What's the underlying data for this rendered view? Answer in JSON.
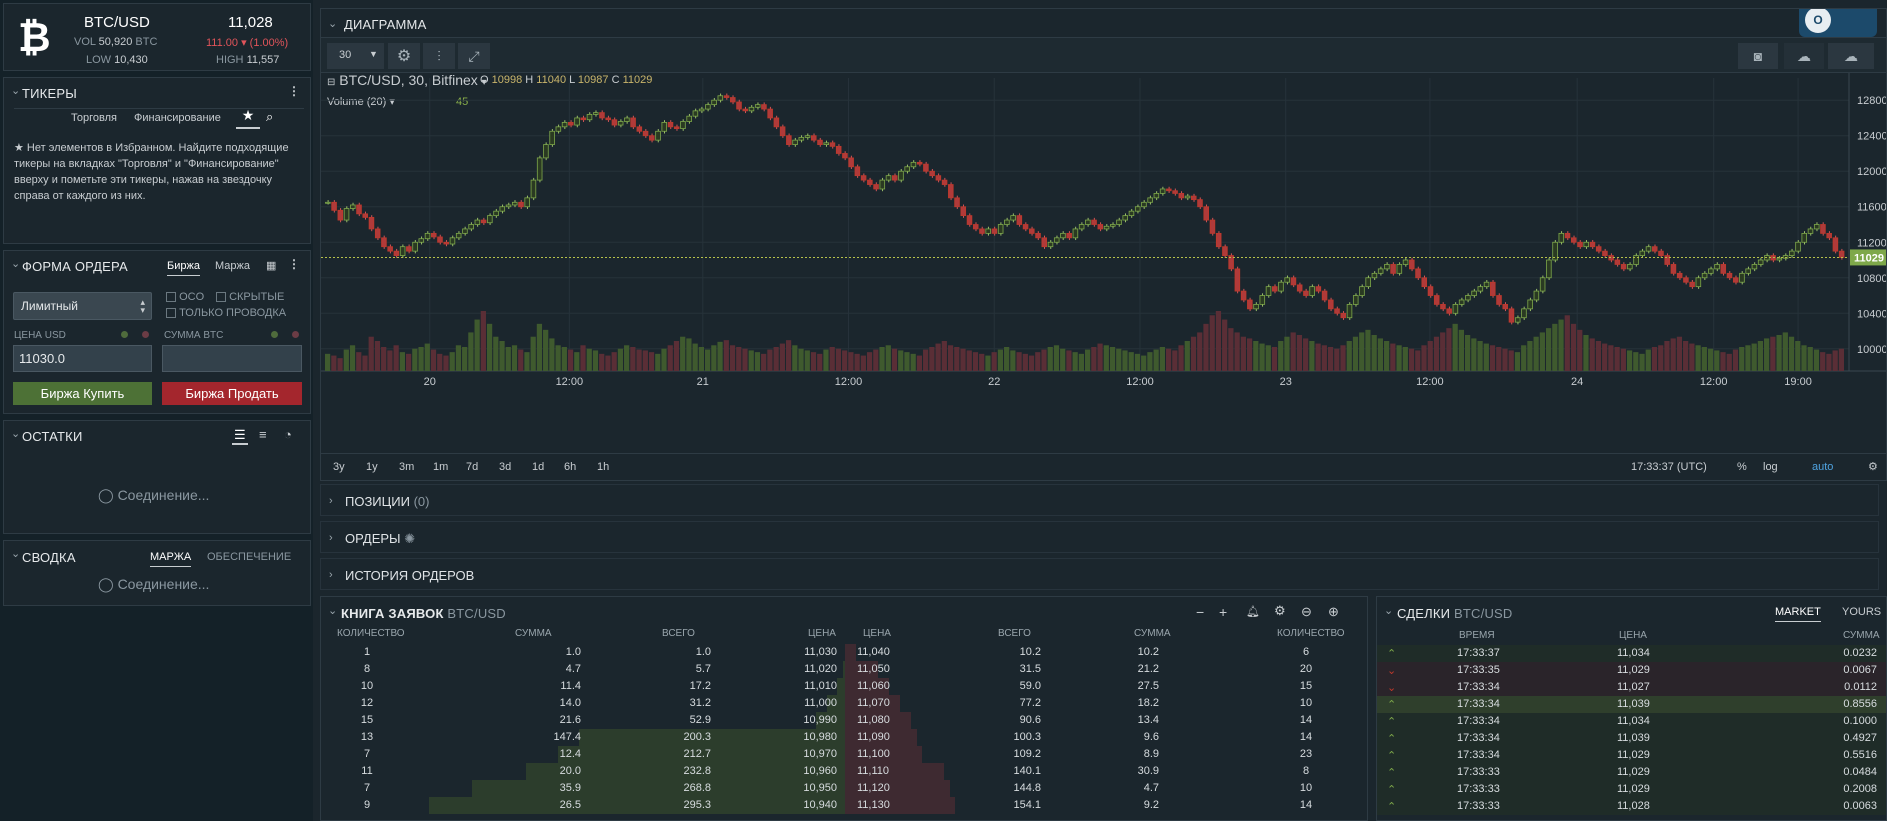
{
  "ticker": {
    "pair": "BTC/USD",
    "price": "11,028",
    "vol_label": "VOL",
    "vol": "50,920",
    "vol_unit": "BTC",
    "change": "111.00",
    "change_pct": "(1.00%)",
    "low_label": "LOW",
    "low": "10,430",
    "high_label": "HIGH",
    "high": "11,557"
  },
  "tickers": {
    "title": "ТИКЕРЫ",
    "tab_trading": "Торговля",
    "tab_funding": "Финансирование",
    "empty_msg": "Нет элементов в Избранном. Найдите подходящие тикеры на вкладках \"Торговля\" и \"Финансирование\" вверху и пометьте эти тикеры, нажав на звездочку справа от каждого из них."
  },
  "order_form": {
    "title": "ФОРМА ОРДЕРА",
    "tab_exchange": "Биржа",
    "tab_margin": "Маржа",
    "order_type": "Лимитный",
    "oco": "OCO",
    "hidden": "СКРЫТЫЕ",
    "post_only": "ТОЛЬКО ПРОВОДКА",
    "price_label": "ЦЕНА USD",
    "amount_label": "СУММА BTC",
    "price_value": "11030.0",
    "amount_value": "",
    "buy_label": "Биржа Купить",
    "sell_label": "Биржа Продать"
  },
  "balances": {
    "title": "ОСТАТКИ",
    "status": "Соединение..."
  },
  "summary": {
    "title": "СВОДКА",
    "tab_margin": "МАРЖА",
    "tab_collateral": "ОБЕСПЕЧЕНИЕ",
    "status": "Соединение..."
  },
  "chart": {
    "panel_title": "ДИАГРАММА",
    "interval": "30",
    "symbol": "BTC/USD, 30, Bitfinex",
    "o_label": "O",
    "o": "10998",
    "h_label": "H",
    "h": "11040",
    "l_label": "L",
    "l": "10987",
    "c_label": "C",
    "c": "11029",
    "volume_label": "Volume (20)",
    "volume_value": "45",
    "price_tag": "11029",
    "time": "17:33:37 (UTC)",
    "pct": "%",
    "log": "log",
    "auto": "auto",
    "ranges": [
      "3y",
      "1y",
      "3m",
      "1m",
      "7d",
      "3d",
      "1d",
      "6h",
      "1h"
    ]
  },
  "chart_data": {
    "type": "candlestick",
    "x_ticks": [
      "20",
      "12:00",
      "21",
      "12:00",
      "22",
      "12:00",
      "23",
      "12:00",
      "24",
      "12:00",
      "19:00"
    ],
    "y_ticks": [
      12800,
      12400,
      12000,
      11600,
      11200,
      10800,
      10400,
      10000
    ],
    "ylim": [
      9750,
      13050
    ],
    "last_price": 11029,
    "closes": [
      11650,
      11560,
      11450,
      11580,
      11620,
      11520,
      11480,
      11350,
      11250,
      11150,
      11100,
      11050,
      11150,
      11100,
      11200,
      11240,
      11300,
      11260,
      11200,
      11180,
      11250,
      11300,
      11350,
      11400,
      11450,
      11420,
      11500,
      11550,
      11600,
      11620,
      11650,
      11600,
      11700,
      11900,
      12150,
      12300,
      12450,
      12500,
      12550,
      12520,
      12600,
      12580,
      12640,
      12660,
      12600,
      12580,
      12520,
      12560,
      12600,
      12500,
      12450,
      12400,
      12350,
      12450,
      12550,
      12500,
      12480,
      12560,
      12620,
      12680,
      12700,
      12750,
      12800,
      12850,
      12830,
      12780,
      12700,
      12680,
      12720,
      12750,
      12700,
      12600,
      12500,
      12400,
      12300,
      12350,
      12380,
      12400,
      12350,
      12300,
      12320,
      12280,
      12200,
      12150,
      12050,
      11950,
      11900,
      11850,
      11800,
      11900,
      11950,
      11900,
      12000,
      12050,
      12100,
      12080,
      12000,
      11950,
      11900,
      11850,
      11700,
      11600,
      11500,
      11400,
      11350,
      11300,
      11350,
      11300,
      11400,
      11450,
      11500,
      11400,
      11350,
      11300,
      11250,
      11150,
      11200,
      11250,
      11300,
      11250,
      11350,
      11400,
      11450,
      11400,
      11350,
      11380,
      11400,
      11450,
      11500,
      11550,
      11600,
      11650,
      11700,
      11750,
      11800,
      11780,
      11750,
      11700,
      11720,
      11680,
      11600,
      11450,
      11300,
      11150,
      11050,
      10900,
      10650,
      10550,
      10450,
      10500,
      10600,
      10700,
      10650,
      10750,
      10800,
      10720,
      10650,
      10600,
      10700,
      10650,
      10550,
      10450,
      10400,
      10350,
      10500,
      10600,
      10700,
      10800,
      10850,
      10900,
      10950,
      10850,
      10950,
      11000,
      10900,
      10800,
      10700,
      10600,
      10500,
      10450,
      10400,
      10500,
      10550,
      10600,
      10650,
      10700,
      10750,
      10600,
      10500,
      10450,
      10300,
      10350,
      10450,
      10550,
      10650,
      10800,
      11000,
      11200,
      11300,
      11250,
      11200,
      11150,
      11200,
      11150,
      11100,
      11050,
      11000,
      10950,
      10900,
      10950,
      11050,
      11100,
      11150,
      11100,
      11050,
      10950,
      10850,
      10800,
      10750,
      10700,
      10800,
      10850,
      10900,
      10950,
      10850,
      10800,
      10750,
      10850,
      10900,
      10950,
      11000,
      11050,
      11000,
      11020,
      11050,
      11100,
      11200,
      11300,
      11350,
      11400,
      11300,
      11250,
      11100,
      11029
    ],
    "volumes": [
      20,
      18,
      15,
      25,
      30,
      22,
      18,
      40,
      35,
      28,
      24,
      30,
      22,
      20,
      26,
      28,
      32,
      25,
      20,
      18,
      22,
      30,
      28,
      45,
      60,
      70,
      55,
      40,
      35,
      28,
      30,
      25,
      22,
      40,
      55,
      48,
      38,
      30,
      28,
      25,
      22,
      30,
      26,
      24,
      20,
      18,
      22,
      26,
      30,
      28,
      25,
      24,
      22,
      20,
      26,
      30,
      35,
      40,
      38,
      32,
      28,
      25,
      30,
      34,
      36,
      30,
      28,
      26,
      24,
      22,
      20,
      25,
      28,
      32,
      36,
      30,
      26,
      24,
      22,
      20,
      25,
      28,
      26,
      24,
      22,
      20,
      18,
      22,
      25,
      28,
      30,
      26,
      24,
      22,
      20,
      18,
      25,
      28,
      32,
      35,
      30,
      28,
      26,
      24,
      22,
      20,
      18,
      22,
      25,
      28,
      24,
      22,
      20,
      18,
      22,
      25,
      28,
      30,
      26,
      24,
      22,
      20,
      25,
      28,
      32,
      30,
      28,
      26,
      24,
      22,
      20,
      18,
      22,
      25,
      28,
      26,
      24,
      30,
      35,
      40,
      45,
      55,
      65,
      70,
      60,
      50,
      45,
      40,
      38,
      35,
      32,
      30,
      28,
      35,
      40,
      45,
      42,
      38,
      35,
      32,
      30,
      28,
      26,
      30,
      35,
      40,
      45,
      48,
      42,
      38,
      35,
      32,
      30,
      28,
      26,
      24,
      30,
      35,
      40,
      45,
      50,
      55,
      48,
      42,
      38,
      35,
      32,
      30,
      28,
      26,
      24,
      22,
      30,
      35,
      40,
      45,
      50,
      55,
      60,
      65,
      55,
      48,
      42,
      38,
      35,
      32,
      30,
      28,
      26,
      24,
      22,
      20,
      25,
      28,
      30,
      35,
      38,
      40,
      35,
      32,
      30,
      28,
      26,
      24,
      22,
      20,
      25,
      28,
      30,
      32,
      35,
      38,
      40,
      42,
      45,
      40,
      35,
      30,
      28,
      25,
      22,
      20,
      24,
      26,
      30,
      34,
      38,
      35,
      30,
      26,
      22,
      20
    ]
  },
  "panels": {
    "positions": "ПОЗИЦИИ",
    "positions_count": "(0)",
    "orders": "ОРДЕРЫ",
    "history": "ИСТОРИЯ ОРДЕРОВ"
  },
  "orderbook": {
    "title": "КНИГА ЗАЯВОК",
    "pair": "BTC/USD",
    "headers": [
      "КОЛИЧЕСТВО",
      "СУММА",
      "ВСЕГО",
      "ЦЕНА",
      "ЦЕНА",
      "ВСЕГО",
      "СУММА",
      "КОЛИЧЕСТВО"
    ],
    "bids": [
      [
        "1",
        "1.0",
        "1.0",
        "11,030"
      ],
      [
        "8",
        "4.7",
        "5.7",
        "11,020"
      ],
      [
        "10",
        "11.4",
        "17.2",
        "11,010"
      ],
      [
        "12",
        "14.0",
        "31.2",
        "11,000"
      ],
      [
        "15",
        "21.6",
        "52.9",
        "10,990"
      ],
      [
        "13",
        "147.4",
        "200.3",
        "10,980"
      ],
      [
        "7",
        "12.4",
        "212.7",
        "10,970"
      ],
      [
        "11",
        "20.0",
        "232.8",
        "10,960"
      ],
      [
        "7",
        "35.9",
        "268.8",
        "10,950"
      ],
      [
        "9",
        "26.5",
        "295.3",
        "10,940"
      ]
    ],
    "bid_depth": [
      0.3,
      0.5,
      1,
      2,
      3,
      25,
      27,
      30,
      35,
      39
    ],
    "asks": [
      [
        "11,040",
        "10.2",
        "10.2",
        "6"
      ],
      [
        "11,050",
        "31.5",
        "21.2",
        "20"
      ],
      [
        "11,060",
        "59.0",
        "27.5",
        "15"
      ],
      [
        "11,070",
        "77.2",
        "18.2",
        "10"
      ],
      [
        "11,080",
        "90.6",
        "13.4",
        "14"
      ],
      [
        "11,090",
        "100.3",
        "9.6",
        "14"
      ],
      [
        "11,100",
        "109.2",
        "8.9",
        "23"
      ],
      [
        "11,110",
        "140.1",
        "30.9",
        "8"
      ],
      [
        "11,120",
        "144.8",
        "4.7",
        "10"
      ],
      [
        "11,130",
        "154.1",
        "9.2",
        "14"
      ]
    ],
    "ask_depth": [
      2,
      6,
      8,
      10,
      12,
      13,
      14,
      18,
      19,
      20
    ]
  },
  "trades": {
    "title": "СДЕЛКИ",
    "pair": "BTC/USD",
    "tab_market": "MARKET",
    "tab_yours": "YOURS",
    "headers": [
      "ВРЕМЯ",
      "ЦЕНА",
      "СУММА"
    ],
    "rows": [
      [
        "up",
        "17:33:37",
        "11,034",
        "0.0232"
      ],
      [
        "down",
        "17:33:35",
        "11,029",
        "0.0067"
      ],
      [
        "down",
        "17:33:34",
        "11,027",
        "0.0112"
      ],
      [
        "up",
        "17:33:34",
        "11,039",
        "0.8556"
      ],
      [
        "up",
        "17:33:34",
        "11,034",
        "0.1000"
      ],
      [
        "up",
        "17:33:34",
        "11,039",
        "0.4927"
      ],
      [
        "up",
        "17:33:34",
        "11,029",
        "0.5516"
      ],
      [
        "up",
        "17:33:33",
        "11,029",
        "0.0484"
      ],
      [
        "up",
        "17:33:33",
        "11,029",
        "0.2008"
      ],
      [
        "up",
        "17:33:33",
        "11,028",
        "0.0063"
      ]
    ]
  }
}
